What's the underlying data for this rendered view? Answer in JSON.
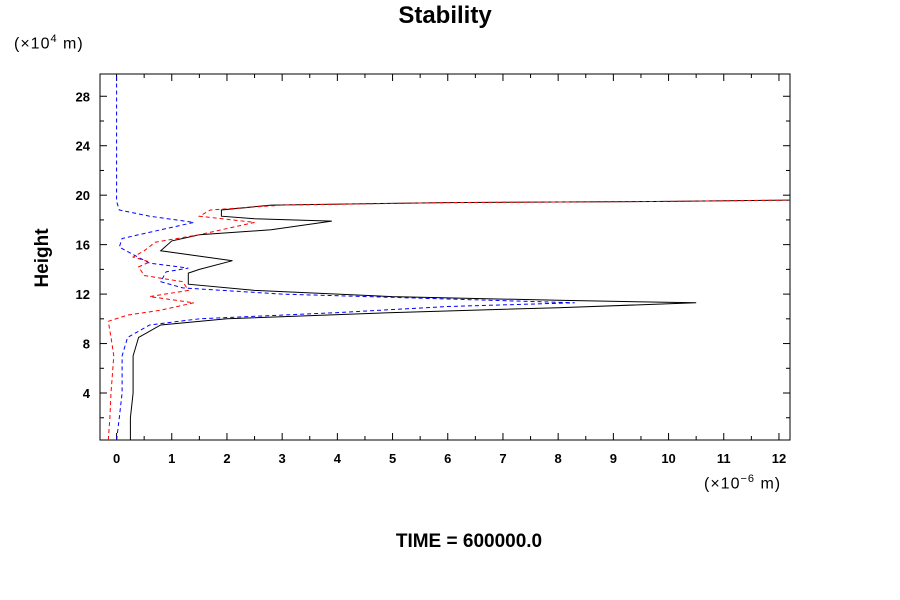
{
  "chart_data": {
    "type": "line",
    "title": "Stability",
    "ylabel": "Height",
    "y_unit_base": "(×10",
    "y_unit_exp": "4",
    "y_unit_tail": " m)",
    "x_unit_base": "(×10",
    "x_unit_exp": "−6",
    "x_unit_tail": " m)",
    "footer": "TIME = 600000.0",
    "xlim": [
      -0.3,
      12.2
    ],
    "ylim": [
      0.2,
      29.8
    ],
    "x_ticks": [
      0,
      1,
      2,
      3,
      4,
      5,
      6,
      7,
      8,
      9,
      10,
      11,
      12
    ],
    "y_ticks": [
      4,
      8,
      12,
      16,
      20,
      24,
      28
    ],
    "grid": false,
    "series": [
      {
        "color": "#000000",
        "dash": "solid",
        "points": [
          [
            0.25,
            0.2
          ],
          [
            0.25,
            2
          ],
          [
            0.3,
            4
          ],
          [
            0.3,
            7
          ],
          [
            0.4,
            8.5
          ],
          [
            0.8,
            9.5
          ],
          [
            2,
            10
          ],
          [
            5,
            10.5
          ],
          [
            8,
            10.9
          ],
          [
            10.5,
            11.3
          ],
          [
            8,
            11.5
          ],
          [
            5,
            11.8
          ],
          [
            2.5,
            12.3
          ],
          [
            1.3,
            12.8
          ],
          [
            1.3,
            13.7
          ],
          [
            1.5,
            14.0
          ],
          [
            2.1,
            14.7
          ],
          [
            0.8,
            15.5
          ],
          [
            1.0,
            16.3
          ],
          [
            1.5,
            16.8
          ],
          [
            2.8,
            17.2
          ],
          [
            3.9,
            17.9
          ],
          [
            2.5,
            18.1
          ],
          [
            1.9,
            18.3
          ],
          [
            1.9,
            18.8
          ],
          [
            2.8,
            19.2
          ],
          [
            6,
            19.4
          ],
          [
            10,
            19.5
          ],
          [
            12.2,
            19.6
          ]
        ]
      },
      {
        "color": "#0000ff",
        "dash": "dashed",
        "points": [
          [
            0.0,
            0.2
          ],
          [
            0.05,
            2
          ],
          [
            0.1,
            4
          ],
          [
            0.1,
            7
          ],
          [
            0.2,
            8.5
          ],
          [
            0.6,
            9.5
          ],
          [
            1.5,
            10
          ],
          [
            4,
            10.5
          ],
          [
            6,
            11.0
          ],
          [
            8.3,
            11.3
          ],
          [
            6,
            11.6
          ],
          [
            3,
            12.0
          ],
          [
            1.2,
            12.5
          ],
          [
            0.8,
            13.0
          ],
          [
            0.9,
            13.8
          ],
          [
            1.3,
            14.1
          ],
          [
            0.6,
            14.5
          ],
          [
            0.3,
            15.2
          ],
          [
            0.05,
            15.8
          ],
          [
            0.1,
            16.5
          ],
          [
            0.6,
            17.0
          ],
          [
            1.4,
            17.8
          ],
          [
            0.6,
            18.3
          ],
          [
            0.05,
            18.8
          ],
          [
            0.0,
            19.5
          ],
          [
            0.0,
            24
          ],
          [
            0.0,
            29.8
          ]
        ]
      },
      {
        "color": "#ff0000",
        "dash": "dashed",
        "points": [
          [
            -0.15,
            0.2
          ],
          [
            -0.12,
            2
          ],
          [
            -0.1,
            4
          ],
          [
            -0.05,
            7
          ],
          [
            -0.1,
            8.5
          ],
          [
            -0.15,
            9.8
          ],
          [
            0.2,
            10.3
          ],
          [
            0.8,
            10.7
          ],
          [
            1.4,
            11.3
          ],
          [
            0.6,
            11.8
          ],
          [
            1.3,
            12.3
          ],
          [
            1.2,
            13.0
          ],
          [
            0.5,
            13.5
          ],
          [
            0.4,
            14.2
          ],
          [
            0.6,
            14.6
          ],
          [
            0.3,
            15.0
          ],
          [
            0.5,
            15.5
          ],
          [
            0.7,
            16.2
          ],
          [
            1.5,
            16.8
          ],
          [
            2.5,
            17.8
          ],
          [
            1.5,
            18.3
          ],
          [
            1.7,
            18.8
          ],
          [
            3,
            19.2
          ],
          [
            6,
            19.4
          ],
          [
            10,
            19.5
          ],
          [
            12.2,
            19.6
          ]
        ]
      }
    ]
  }
}
